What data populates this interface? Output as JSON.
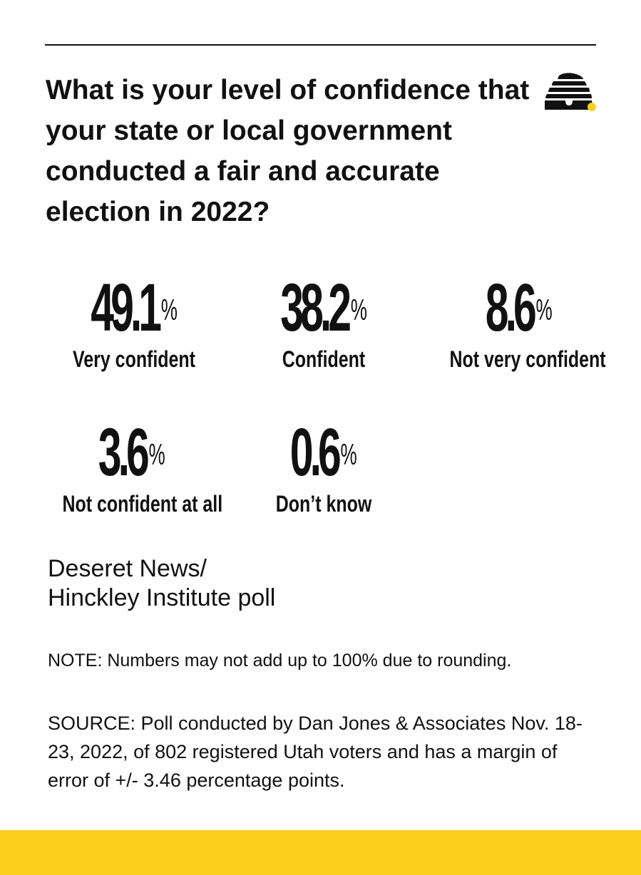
{
  "title": "What is your level of confidence that your state or local government conducted a fair and accurate election in 2022?",
  "colors": {
    "text": "#111111",
    "accent_yellow": "#fccf1a",
    "background": "#ffffff"
  },
  "logo_icon": "beehive-icon",
  "chart_data": {
    "type": "table",
    "title": "What is your level of confidence that your state or local government conducted a fair and accurate election in 2022?",
    "unit": "%",
    "categories": [
      "Very confident",
      "Confident",
      "Not very confident",
      "Not confident at all",
      "Don’t know"
    ],
    "values": [
      49.1,
      38.2,
      8.6,
      3.6,
      0.6
    ],
    "value_labels": [
      "49.1",
      "38.2",
      "8.6",
      "3.6",
      "0.6"
    ],
    "percent_sign": "%"
  },
  "credit": {
    "line1": "Deseret News/",
    "line2": "Hinckley Institute poll"
  },
  "note": "NOTE: Numbers may not add up to 100% due to rounding.",
  "source": "SOURCE: Poll conducted by Dan Jones & Associates Nov. 18-23, 2022, of 802 registered Utah voters and has a margin of error of +/- 3.46 percentage points."
}
